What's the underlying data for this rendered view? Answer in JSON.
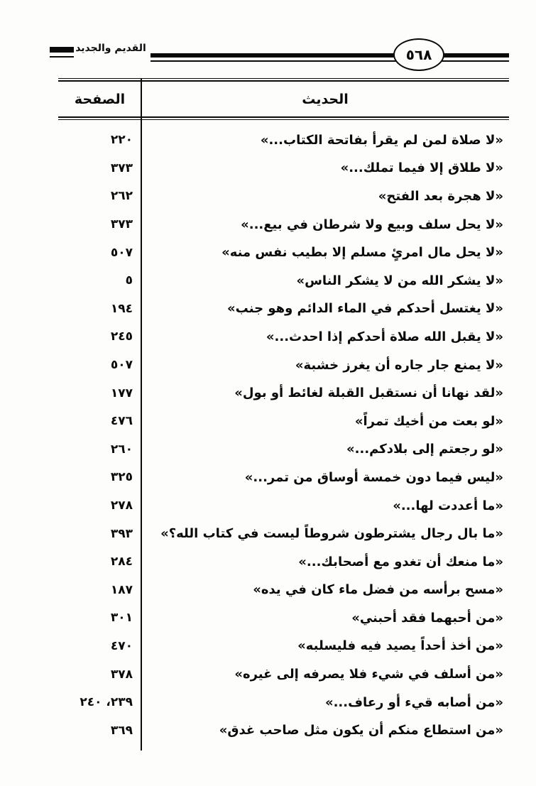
{
  "header": {
    "book_title": "القديم والجديد",
    "page_number": "٥٦٨"
  },
  "table": {
    "columns": {
      "hadith": "الحديث",
      "page": "الصفحة"
    },
    "rows": [
      {
        "hadith": "«لا صلاة لمن لم يقرأ بفاتحة الكتاب...»",
        "page": "٢٢٠"
      },
      {
        "hadith": "«لا طلاق إلا فيما تملك...»",
        "page": "٣٧٣"
      },
      {
        "hadith": "«لا هجرة بعد الفتح»",
        "page": "٢٦٢"
      },
      {
        "hadith": "«لا يحل سلف وبيع ولا شرطان في بيع...»",
        "page": "٣٧٣"
      },
      {
        "hadith": "«لا يحل مال امرئٍ مسلم إلا بطيب نفس منه»",
        "page": "٥٠٧"
      },
      {
        "hadith": "«لا يشكر الله من لا يشكر الناس»",
        "page": "٥"
      },
      {
        "hadith": "«لا يغتسل أحدكم في الماء الدائم وهو جنب»",
        "page": "١٩٤"
      },
      {
        "hadith": "«لا يقبل الله صلاة أحدكم إذا احدث...»",
        "page": "٢٤٥"
      },
      {
        "hadith": "«لا يمنع جار جاره أن يغرز خشبة»",
        "page": "٥٠٧"
      },
      {
        "hadith": "«لقد نهانا أن نستقبل القبلة لغائط أو بول»",
        "page": "١٧٧"
      },
      {
        "hadith": "«لو بعت من أخيك تمراً»",
        "page": "٤٧٦"
      },
      {
        "hadith": "«لو رجعتم إلى بلادكم...»",
        "page": "٢٦٠"
      },
      {
        "hadith": "«ليس فيما دون خمسة أوساق من تمر...»",
        "page": "٣٢٥"
      },
      {
        "hadith": "«ما أعددت لها...»",
        "page": "٢٧٨"
      },
      {
        "hadith": "«ما بال رجال يشترطون شروطاً ليست في كتاب الله؟»",
        "page": "٣٩٣"
      },
      {
        "hadith": "«ما منعك أن تغدو مع أصحابك...»",
        "page": "٢٨٤"
      },
      {
        "hadith": "«مسح برأسه من فضل ماء كان في يده»",
        "page": "١٨٧"
      },
      {
        "hadith": "«من أحبهما فقد أحبني»",
        "page": "٣٠١"
      },
      {
        "hadith": "«من أخذ أحداً يصيد فيه فليسلبه»",
        "page": "٤٧٠"
      },
      {
        "hadith": "«من أسلف في شيء فلا يصرفه إلى غيره»",
        "page": "٣٧٨"
      },
      {
        "hadith": "«من أصابه قيء أو رعاف...»",
        "page": "٢٣٩، ٢٤٠"
      },
      {
        "hadith": "«من استطاع منكم أن يكون مثل صاحب غدق»",
        "page": "٣٦٩"
      }
    ]
  }
}
